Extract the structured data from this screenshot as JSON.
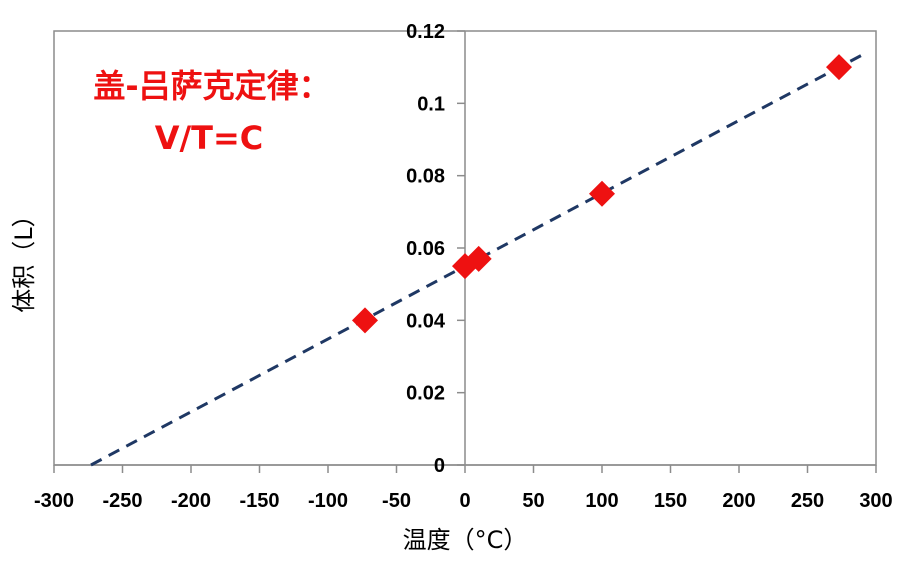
{
  "chart_data": {
    "type": "scatter",
    "title": "",
    "xlabel": "温度（°C）",
    "ylabel": "体积（L）",
    "xlim": [
      -300,
      300
    ],
    "ylim": [
      0,
      0.12
    ],
    "x_ticks": [
      -300,
      -250,
      -200,
      -150,
      -100,
      -50,
      0,
      50,
      100,
      150,
      200,
      250,
      300
    ],
    "y_ticks": [
      0,
      0.02,
      0.04,
      0.06,
      0.08,
      0.1,
      0.12
    ],
    "x_tick_labels": [
      "-300",
      "-250",
      "-200",
      "-150",
      "-100",
      "-50",
      "0",
      "50",
      "100",
      "150",
      "200",
      "250",
      "300"
    ],
    "y_tick_labels": [
      "0",
      "0.02",
      "0.04",
      "0.06",
      "0.08",
      "0.1",
      "0.12"
    ],
    "grid": false,
    "points": {
      "x": [
        -73,
        0,
        10,
        100,
        273
      ],
      "y": [
        0.04,
        0.055,
        0.057,
        0.075,
        0.11
      ],
      "color": "#ee1111",
      "marker": "diamond"
    },
    "trendline": {
      "style": "dashed",
      "color": "#1f3864",
      "x": [
        -273,
        293
      ],
      "y": [
        0,
        0.114
      ]
    },
    "annotation": {
      "lines": [
        "盖-吕萨克定律：",
        "V/T=C"
      ],
      "color": "#ee1111"
    }
  }
}
